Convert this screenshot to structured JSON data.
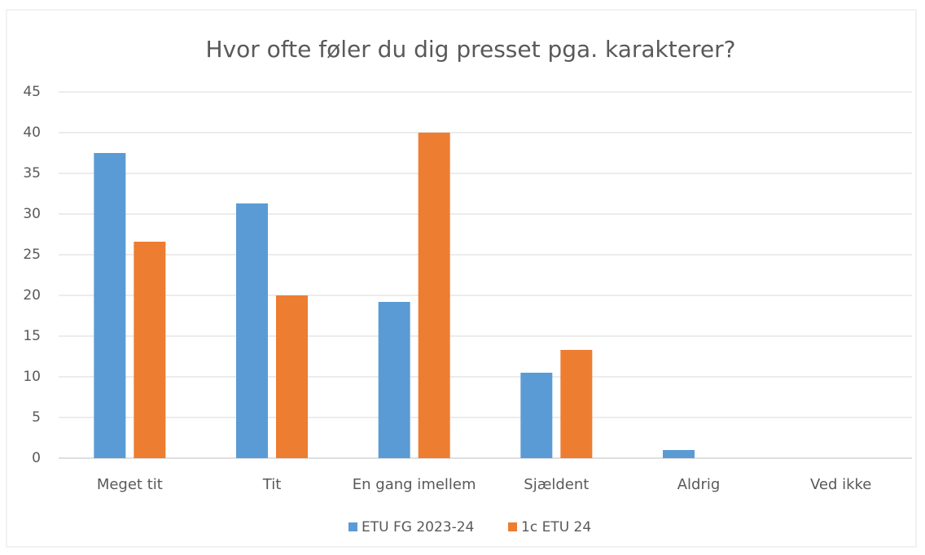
{
  "chart_data": {
    "type": "bar",
    "title": "Hvor ofte føler du dig presset pga. karakterer?",
    "categories": [
      "Meget tit",
      "Tit",
      "En gang imellem",
      "Sjældent",
      "Aldrig",
      "Ved ikke"
    ],
    "series": [
      {
        "name": "ETU FG 2023-24",
        "color": "#5b9bd5",
        "values": [
          37.5,
          31.3,
          19.2,
          10.5,
          1.0,
          0
        ]
      },
      {
        "name": "1c ETU 24",
        "color": "#ed7d31",
        "values": [
          26.6,
          20,
          40,
          13.3,
          0,
          0
        ]
      }
    ],
    "ylim": [
      0,
      45
    ],
    "yticks": [
      0,
      5,
      10,
      15,
      20,
      25,
      30,
      35,
      40,
      45
    ],
    "grid": true,
    "legend": "bottom"
  }
}
